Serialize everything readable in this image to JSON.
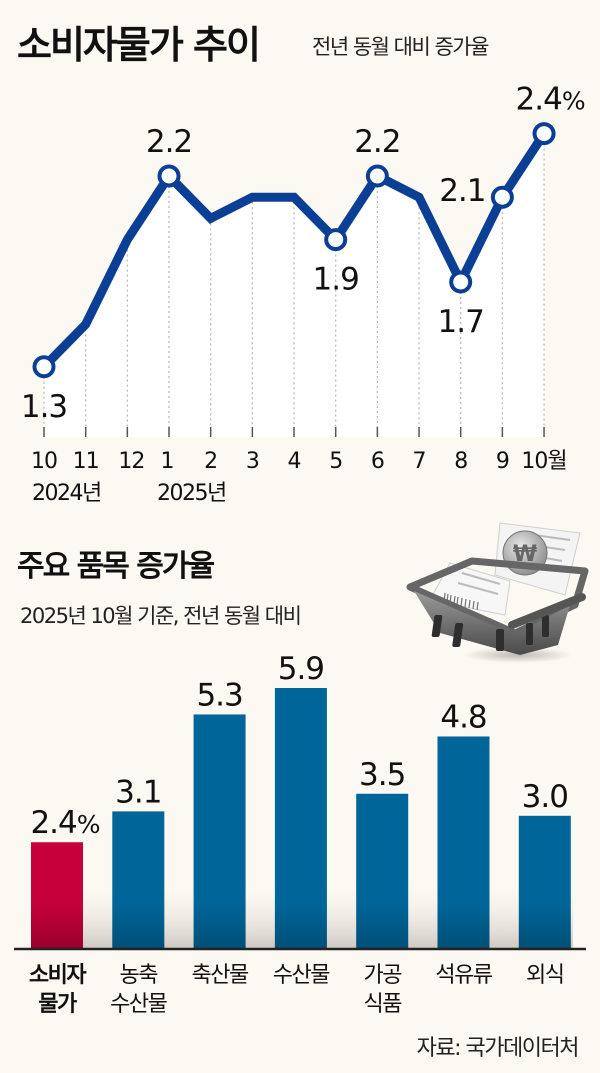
{
  "header": {
    "title": "소비자물가 추이",
    "subtitle": "전년 동월 대비 증가율"
  },
  "section2": {
    "title": "주요 품목 증가율",
    "subtitle": "2025년 10월 기준, 전년 동월 대비"
  },
  "source": "자료: 국가데이터처",
  "colors": {
    "background": "#fcf8f2",
    "line": "#0b3f96",
    "bar": "#006699",
    "bar_highlight": "#c6003a",
    "fill": "#ffffff"
  },
  "chart_data": [
    {
      "type": "line",
      "title": "소비자물가 추이",
      "subtitle": "전년 동월 대비 증가율",
      "x": [
        "10",
        "11",
        "12",
        "1",
        "2",
        "3",
        "4",
        "5",
        "6",
        "7",
        "8",
        "9",
        "10월"
      ],
      "year_labels": [
        {
          "label": "2024년",
          "at_index": 0
        },
        {
          "label": "2025년",
          "at_index": 3
        }
      ],
      "values": [
        1.3,
        1.5,
        1.9,
        2.2,
        2.0,
        2.1,
        2.1,
        1.9,
        2.2,
        2.1,
        1.7,
        2.1,
        2.4
      ],
      "markers": [
        0,
        3,
        7,
        8,
        10,
        11,
        12
      ],
      "data_labels": [
        {
          "index": 0,
          "text": "1.3",
          "pos": "below"
        },
        {
          "index": 3,
          "text": "2.2",
          "pos": "above"
        },
        {
          "index": 7,
          "text": "1.9",
          "pos": "below"
        },
        {
          "index": 8,
          "text": "2.2",
          "pos": "above"
        },
        {
          "index": 10,
          "text": "1.7",
          "pos": "below"
        },
        {
          "index": 11,
          "text": "2.1",
          "pos": "left"
        },
        {
          "index": 12,
          "text": "2.4%",
          "pos": "above"
        }
      ],
      "unit": "%",
      "grid": "vertical dotted"
    },
    {
      "type": "bar",
      "title": "주요 품목 증가율",
      "subtitle": "2025년 10월 기준, 전년 동월 대비",
      "categories": [
        [
          "소비자",
          "물가"
        ],
        [
          "농축",
          "수산물"
        ],
        [
          "축산물"
        ],
        [
          "수산물"
        ],
        [
          "가공",
          "식품"
        ],
        [
          "석유류"
        ],
        [
          "외식"
        ]
      ],
      "values": [
        2.4,
        3.1,
        5.3,
        5.9,
        3.5,
        4.8,
        3.0
      ],
      "value_labels": [
        "2.4%",
        "3.1",
        "5.3",
        "5.9",
        "3.5",
        "4.8",
        "3.0"
      ],
      "highlight_index": 0,
      "unit": "%"
    }
  ]
}
